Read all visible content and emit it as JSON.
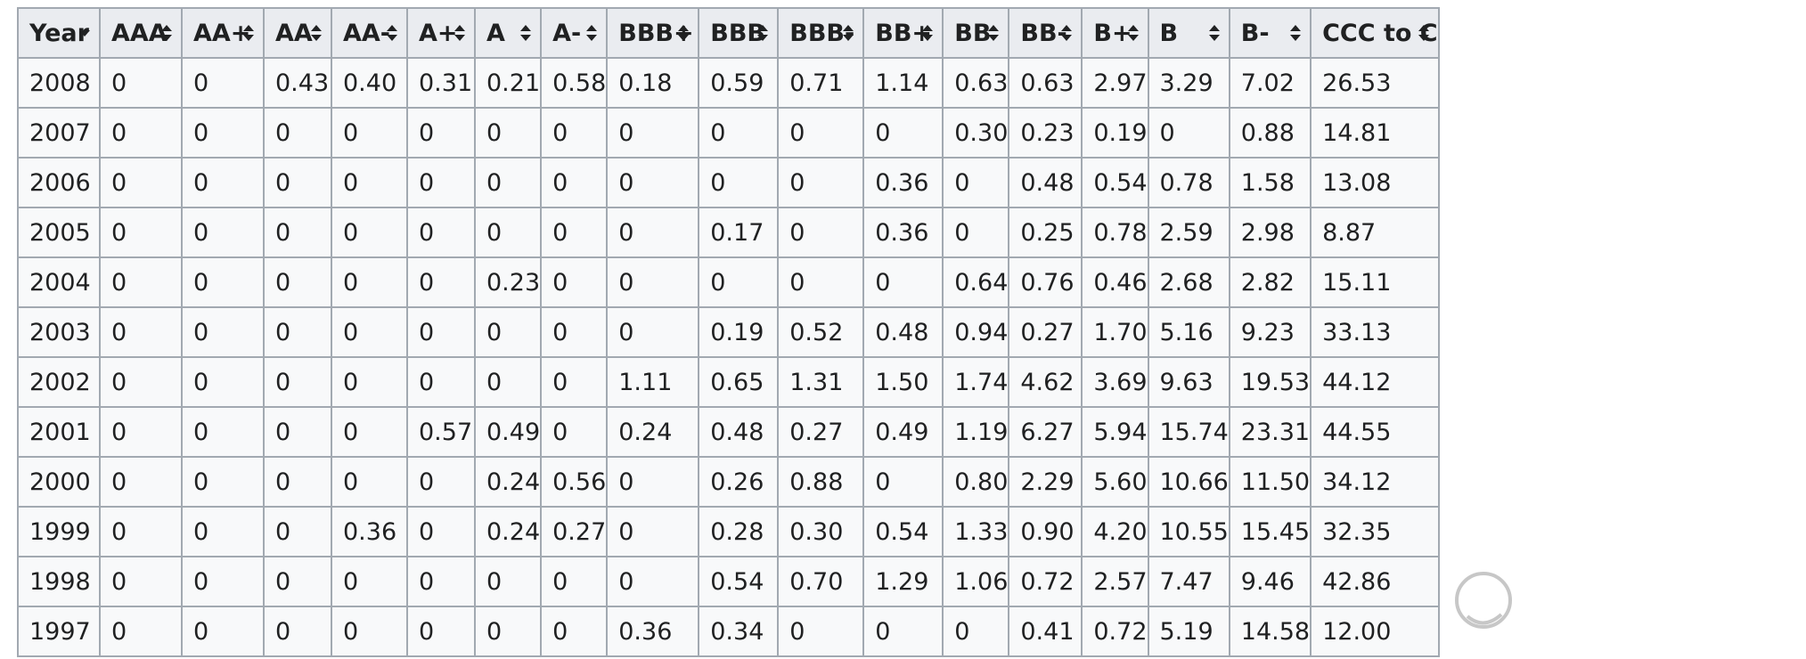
{
  "table": {
    "columns": [
      {
        "label": "Year",
        "sort": "descending"
      },
      {
        "label": "AAA",
        "sort": "both"
      },
      {
        "label": "AA+",
        "sort": "both"
      },
      {
        "label": "AA",
        "sort": "both"
      },
      {
        "label": "AA-",
        "sort": "both"
      },
      {
        "label": "A+",
        "sort": "both"
      },
      {
        "label": "A",
        "sort": "both"
      },
      {
        "label": "A-",
        "sort": "both"
      },
      {
        "label": "BBB+",
        "sort": "both"
      },
      {
        "label": "BBB",
        "sort": "both"
      },
      {
        "label": "BBB-",
        "sort": "both"
      },
      {
        "label": "BB+",
        "sort": "both"
      },
      {
        "label": "BB",
        "sort": "both"
      },
      {
        "label": "BB-",
        "sort": "both"
      },
      {
        "label": "B+",
        "sort": "both"
      },
      {
        "label": "B",
        "sort": "both"
      },
      {
        "label": "B-",
        "sort": "both"
      },
      {
        "label": "CCC to C",
        "sort": "both"
      }
    ],
    "rows": [
      [
        "2008",
        "0",
        "0",
        "0.43",
        "0.40",
        "0.31",
        "0.21",
        "0.58",
        "0.18",
        "0.59",
        "0.71",
        "1.14",
        "0.63",
        "0.63",
        "2.97",
        "3.29",
        "7.02",
        "26.53"
      ],
      [
        "2007",
        "0",
        "0",
        "0",
        "0",
        "0",
        "0",
        "0",
        "0",
        "0",
        "0",
        "0",
        "0.30",
        "0.23",
        "0.19",
        "0",
        "0.88",
        "14.81"
      ],
      [
        "2006",
        "0",
        "0",
        "0",
        "0",
        "0",
        "0",
        "0",
        "0",
        "0",
        "0",
        "0.36",
        "0",
        "0.48",
        "0.54",
        "0.78",
        "1.58",
        "13.08"
      ],
      [
        "2005",
        "0",
        "0",
        "0",
        "0",
        "0",
        "0",
        "0",
        "0",
        "0.17",
        "0",
        "0.36",
        "0",
        "0.25",
        "0.78",
        "2.59",
        "2.98",
        "8.87"
      ],
      [
        "2004",
        "0",
        "0",
        "0",
        "0",
        "0",
        "0.23",
        "0",
        "0",
        "0",
        "0",
        "0",
        "0.64",
        "0.76",
        "0.46",
        "2.68",
        "2.82",
        "15.11"
      ],
      [
        "2003",
        "0",
        "0",
        "0",
        "0",
        "0",
        "0",
        "0",
        "0",
        "0.19",
        "0.52",
        "0.48",
        "0.94",
        "0.27",
        "1.70",
        "5.16",
        "9.23",
        "33.13"
      ],
      [
        "2002",
        "0",
        "0",
        "0",
        "0",
        "0",
        "0",
        "0",
        "1.11",
        "0.65",
        "1.31",
        "1.50",
        "1.74",
        "4.62",
        "3.69",
        "9.63",
        "19.53",
        "44.12"
      ],
      [
        "2001",
        "0",
        "0",
        "0",
        "0",
        "0.57",
        "0.49",
        "0",
        "0.24",
        "0.48",
        "0.27",
        "0.49",
        "1.19",
        "6.27",
        "5.94",
        "15.74",
        "23.31",
        "44.55"
      ],
      [
        "2000",
        "0",
        "0",
        "0",
        "0",
        "0",
        "0.24",
        "0.56",
        "0",
        "0.26",
        "0.88",
        "0",
        "0.80",
        "2.29",
        "5.60",
        "10.66",
        "11.50",
        "34.12"
      ],
      [
        "1999",
        "0",
        "0",
        "0",
        "0.36",
        "0",
        "0.24",
        "0.27",
        "0",
        "0.28",
        "0.30",
        "0.54",
        "1.33",
        "0.90",
        "4.20",
        "10.55",
        "15.45",
        "32.35"
      ],
      [
        "1998",
        "0",
        "0",
        "0",
        "0",
        "0",
        "0",
        "0",
        "0",
        "0.54",
        "0.70",
        "1.29",
        "1.06",
        "0.72",
        "2.57",
        "7.47",
        "9.46",
        "42.86"
      ],
      [
        "1997",
        "0",
        "0",
        "0",
        "0",
        "0",
        "0",
        "0",
        "0.36",
        "0.34",
        "0",
        "0",
        "0",
        "0.41",
        "0.72",
        "5.19",
        "14.58",
        "12.00"
      ]
    ]
  },
  "colors": {
    "header_bg": "#eaecf0",
    "cell_bg": "#f8f9fa",
    "border": "#a2a9b1",
    "text": "#202122"
  },
  "icons": {
    "sort_descending": "sort-descending-icon",
    "sort_both": "sort-both-icon"
  }
}
